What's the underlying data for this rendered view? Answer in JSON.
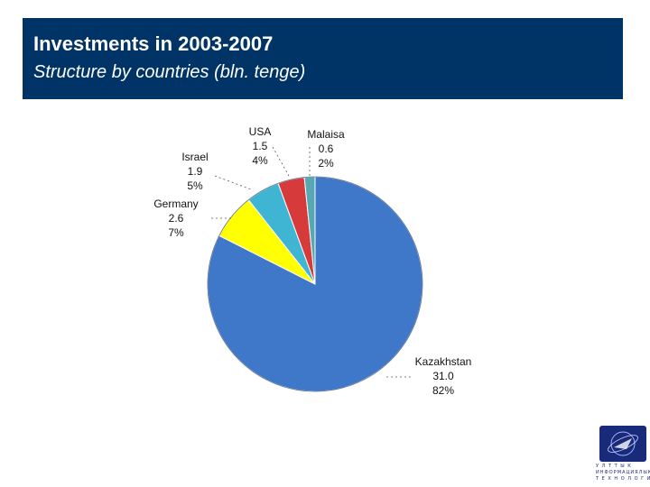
{
  "header": {
    "title": "Investments in 2003-2007",
    "subtitle": "Structure by countries (bln. tenge)"
  },
  "chart_data": {
    "type": "pie",
    "title": "Investments in 2003-2007",
    "subtitle": "Structure by countries (bln. tenge)",
    "slices": [
      {
        "name": "Kazakhstan",
        "value": "31.0",
        "percent": "82%",
        "color": "#3f77c9"
      },
      {
        "name": "Germany",
        "value": "2.6",
        "percent": "7%",
        "color": "#ffff00"
      },
      {
        "name": "Israel",
        "value": "1.9",
        "percent": "5%",
        "color": "#3fb5d3"
      },
      {
        "name": "USA",
        "value": "1.5",
        "percent": "4%",
        "color": "#d63a3a"
      },
      {
        "name": "Malaisa",
        "value": "0.6",
        "percent": "2%",
        "color": "#56a8b3"
      }
    ]
  },
  "logo": {
    "text": "У Л Т Т Ы К\nИНФОРМАЦИЯЛЫК\nТ Е Х Н О Л О Г И Я Л А Р"
  }
}
